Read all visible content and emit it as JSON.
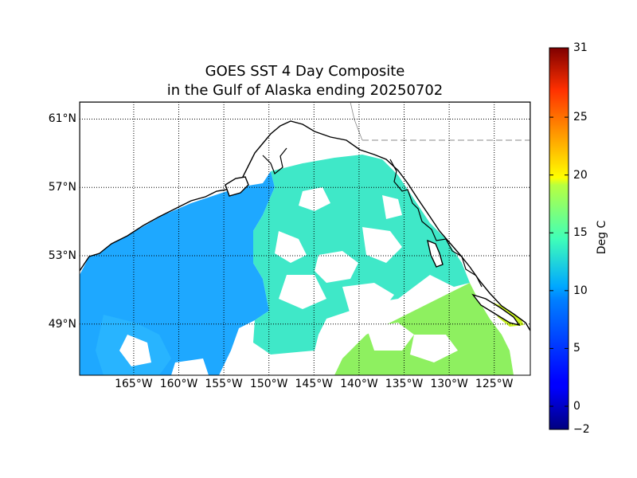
{
  "title": {
    "line1": "GOES SST 4 Day Composite",
    "line2": "in the Gulf of Alaska ending 20250702"
  },
  "map": {
    "lon_range": [
      -171,
      -121
    ],
    "lat_range": [
      46,
      62
    ],
    "lat_ticks": [
      {
        "value": 61,
        "label": "61°N"
      },
      {
        "value": 57,
        "label": "57°N"
      },
      {
        "value": 53,
        "label": "53°N"
      },
      {
        "value": 49,
        "label": "49°N"
      }
    ],
    "lon_ticks": [
      {
        "value": -165,
        "label": "165°W"
      },
      {
        "value": -160,
        "label": "160°W"
      },
      {
        "value": -155,
        "label": "155°W"
      },
      {
        "value": -150,
        "label": "150°W"
      },
      {
        "value": -145,
        "label": "145°W"
      },
      {
        "value": -140,
        "label": "140°W"
      },
      {
        "value": -135,
        "label": "135°W"
      },
      {
        "value": -130,
        "label": "130°W"
      },
      {
        "value": -125,
        "label": "125°W"
      }
    ],
    "grid": true,
    "colors": {
      "land": "#ffffff",
      "coast": "#000000",
      "cold_sst": "#1ea8ff",
      "mid_sst": "#3fe8c8",
      "warm_sst": "#8ef060"
    }
  },
  "colorbar": {
    "min": -2,
    "max": 31,
    "ticks": [
      {
        "value": 31,
        "label": "31"
      },
      {
        "value": 25,
        "label": "25"
      },
      {
        "value": 20,
        "label": "20"
      },
      {
        "value": 15,
        "label": "15"
      },
      {
        "value": 10,
        "label": "10"
      },
      {
        "value": 5,
        "label": "5"
      },
      {
        "value": 0,
        "label": "0"
      },
      {
        "value": -2,
        "label": "−2"
      }
    ],
    "label": "Deg C"
  }
}
